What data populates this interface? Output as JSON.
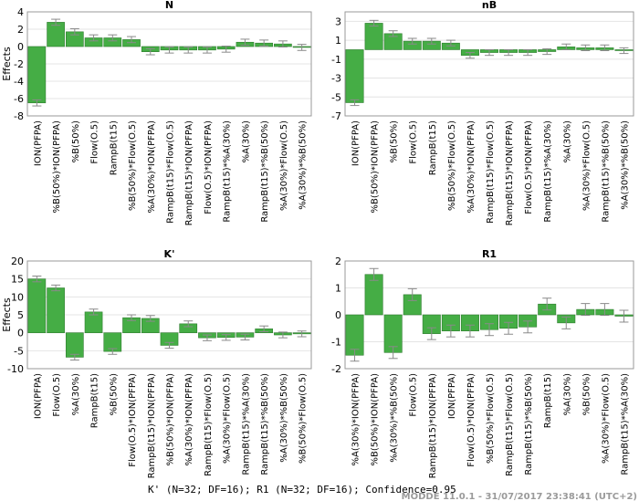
{
  "chart_data": [
    {
      "type": "bar",
      "title": "N",
      "ylabel": "Effects",
      "ylim": [
        -8,
        4
      ],
      "yticks": [
        -8,
        -6,
        -4,
        -2,
        0,
        2,
        4
      ],
      "categories": [
        "ION(PFPA)",
        "%B(50%)*ION(PFPA)",
        "%B(50%)",
        "Flow(O.5)",
        "RampB(t15)",
        "%B(50%)*Flow(O.5)",
        "%A(30%)*ION(PFPA)",
        "RampB(t15)*Flow(O.5)",
        "RampB(t15)*ION(PFPA)",
        "Flow(O.5)*ION(PFPA)",
        "RampB(t15)*%A(30%)",
        "%A(30%)",
        "RampB(t15)*%B(50%)",
        "%A(30%)*Flow(O.5)",
        "%A(30%)*%B(50%)"
      ],
      "values": [
        -6.5,
        2.8,
        1.7,
        1.0,
        1.0,
        0.8,
        -0.6,
        -0.4,
        -0.4,
        -0.4,
        -0.3,
        0.5,
        0.4,
        0.3,
        -0.1
      ],
      "errors": [
        0.35,
        0.35,
        0.35,
        0.35,
        0.35,
        0.35,
        0.35,
        0.35,
        0.35,
        0.35,
        0.35,
        0.35,
        0.35,
        0.35,
        0.35
      ]
    },
    {
      "type": "bar",
      "title": "nB",
      "ylabel": "",
      "ylim": [
        -7,
        4
      ],
      "yticks": [
        -7,
        -5,
        -3,
        -1,
        1,
        3
      ],
      "categories": [
        "ION(PFPA)",
        "%B(50%)*ION(PFPA)",
        "%B(50%)",
        "Flow(O.5)",
        "RampB(t15)",
        "%B(50%)*Flow(O.5)",
        "%A(30%)*ION(PFPA)",
        "RampB(t15)*Flow(O.5)",
        "RampB(t15)*ION(PFPA)",
        "Flow(O.5)*ION(PFPA)",
        "RampB(t15)*%A(30%)",
        "%A(30%)",
        "%A(30%)*Flow(O.5)",
        "RampB(t15)*%B(50%)",
        "%A(30%)*%B(50%)"
      ],
      "values": [
        -5.6,
        2.8,
        1.7,
        0.9,
        0.9,
        0.7,
        -0.6,
        -0.3,
        -0.3,
        -0.3,
        -0.2,
        0.3,
        0.2,
        0.2,
        -0.1
      ],
      "errors": [
        0.3,
        0.3,
        0.3,
        0.3,
        0.3,
        0.3,
        0.3,
        0.3,
        0.3,
        0.3,
        0.3,
        0.3,
        0.3,
        0.3,
        0.3
      ]
    },
    {
      "type": "bar",
      "title": "K'",
      "ylabel": "Effects",
      "ylim": [
        -10,
        20
      ],
      "yticks": [
        -10,
        -5,
        0,
        5,
        10,
        15,
        20
      ],
      "categories": [
        "ION(PFPA)",
        "Flow(O.5)",
        "%A(30%)",
        "RampB(t15)",
        "%B(50%)",
        "Flow(O.5)*ION(PFPA)",
        "RampB(t15)*ION(PFPA)",
        "%B(50%)*ION(PFPA)",
        "%A(30%)*ION(PFPA)",
        "RampB(t15)*Flow(O.5)",
        "%A(30%)*Flow(O.5)",
        "RampB(t15)*%A(30%)",
        "RampB(t15)*%B(50%)",
        "%A(30%)*%B(50%)",
        "%B(50%)*Flow(O.5)"
      ],
      "values": [
        15.0,
        12.5,
        -6.8,
        5.8,
        -5.2,
        4.2,
        4.0,
        -3.5,
        2.5,
        -1.4,
        -1.3,
        -1.2,
        1.1,
        -0.6,
        -0.3
      ],
      "errors": [
        0.8,
        0.8,
        0.8,
        0.8,
        0.8,
        0.8,
        0.8,
        0.8,
        0.8,
        0.8,
        0.8,
        0.8,
        0.8,
        0.8,
        0.8
      ]
    },
    {
      "type": "bar",
      "title": "R1",
      "ylabel": "",
      "ylim": [
        -2,
        2
      ],
      "yticks": [
        -2,
        -1,
        0,
        1,
        2
      ],
      "categories": [
        "%A(30%)*ION(PFPA)",
        "%B(50%)*ION(PFPA)",
        "%A(30%)*%B(50%)",
        "Flow(O.5)",
        "RampB(t15)*ION(PFPA)",
        "ION(PFPA)",
        "Flow(O.5)*ION(PFPA)",
        "%B(50%)*Flow(O.5)",
        "RampB(t15)*Flow(O.5)",
        "RampB(t15)*%B(50%)",
        "RampB(t15)",
        "%A(30%)",
        "%B(50%)",
        "%A(30%)*Flow(O.5)",
        "RampB(t15)*%A(30%)"
      ],
      "values": [
        -1.5,
        1.5,
        -1.4,
        0.75,
        -0.7,
        -0.6,
        -0.6,
        -0.55,
        -0.5,
        -0.45,
        0.4,
        -0.3,
        0.2,
        0.2,
        -0.05
      ],
      "errors": [
        0.22,
        0.22,
        0.22,
        0.22,
        0.22,
        0.22,
        0.22,
        0.22,
        0.22,
        0.22,
        0.22,
        0.22,
        0.22,
        0.22,
        0.22
      ]
    }
  ],
  "footer": "K' (N=32; DF=16); R1 (N=32; DF=16); Confidence=0.95",
  "watermark": "MODDE 11.0.1 - 31/07/2017 23:38:41 (UTC+2)",
  "colors": {
    "bar_fill": "#45ad45",
    "bar_stroke": "#2f7d2f",
    "error_bar": "#8a8a8a",
    "grid": "#e4e4e4",
    "frame": "#9a9a9a"
  }
}
